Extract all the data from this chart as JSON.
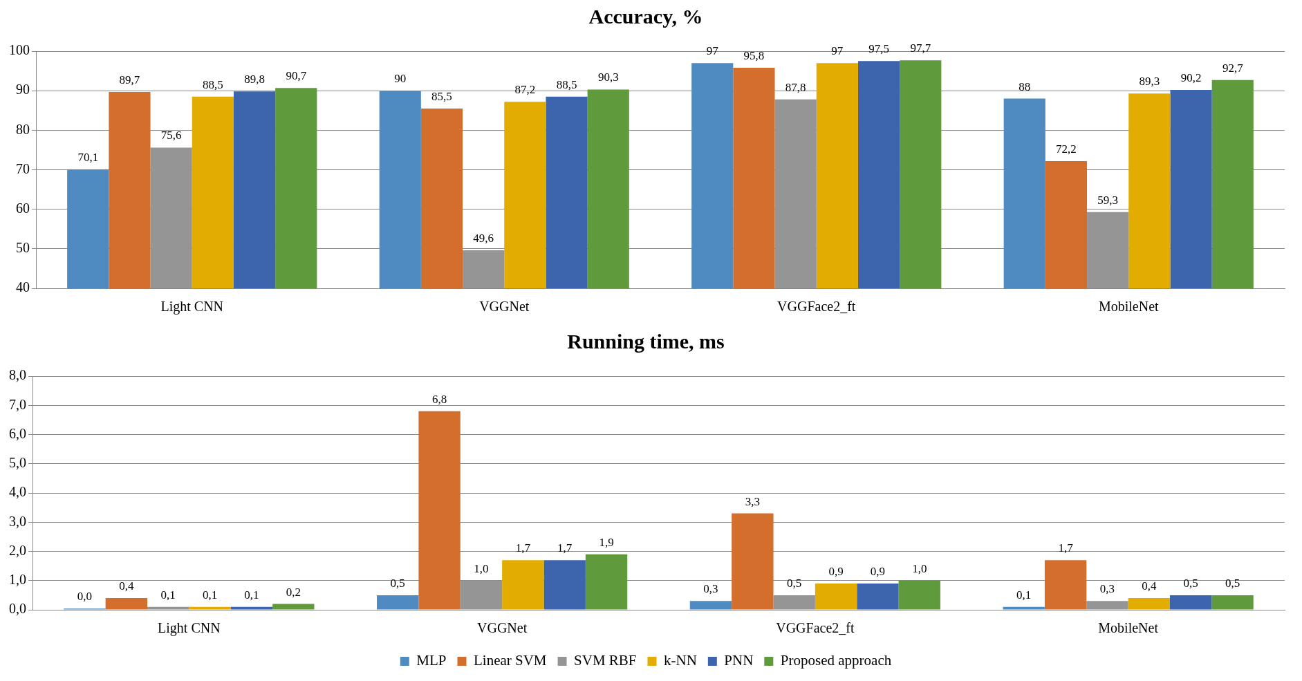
{
  "chart_data": [
    {
      "type": "bar",
      "title": "Accuracy, %",
      "categories": [
        "Light CNN",
        "VGGNet",
        "VGGFace2_ft",
        "MobileNet"
      ],
      "ylim": [
        40,
        100
      ],
      "yticks": [
        40,
        50,
        60,
        70,
        80,
        90,
        100
      ],
      "grid": "y",
      "legend": false,
      "series": [
        {
          "color": "#4f8bc0",
          "values": [
            70.1,
            90,
            97,
            88
          ],
          "value_labels": [
            "70,1",
            "90",
            "97",
            "88"
          ]
        },
        {
          "color": "#d46e2c",
          "values": [
            89.7,
            85.5,
            95.8,
            72.2
          ],
          "value_labels": [
            "89,7",
            "85,5",
            "95,8",
            "72,2"
          ]
        },
        {
          "color": "#959595",
          "values": [
            75.6,
            49.6,
            87.8,
            59.3
          ],
          "value_labels": [
            "75,6",
            "49,6",
            "87,8",
            "59,3"
          ]
        },
        {
          "color": "#e3ac00",
          "values": [
            88.5,
            87.2,
            97,
            89.3
          ],
          "value_labels": [
            "88,5",
            "87,2",
            "97",
            "89,3"
          ]
        },
        {
          "color": "#3c65ad",
          "values": [
            89.8,
            88.5,
            97.5,
            90.2
          ],
          "value_labels": [
            "89,8",
            "88,5",
            "97,5",
            "90,2"
          ]
        },
        {
          "color": "#5f9a3c",
          "values": [
            90.7,
            90.3,
            97.7,
            92.7
          ],
          "value_labels": [
            "90,7",
            "90,3",
            "97,7",
            "92,7"
          ]
        }
      ]
    },
    {
      "type": "bar",
      "title": "Running time, ms",
      "categories": [
        "Light CNN",
        "VGGNet",
        "VGGFace2_ft",
        "MobileNet"
      ],
      "ylim": [
        0,
        8
      ],
      "yticks": [
        {
          "value": 0,
          "label": "0,0"
        },
        {
          "value": 1,
          "label": "1,0"
        },
        {
          "value": 2,
          "label": "2,0"
        },
        {
          "value": 3,
          "label": "3,0"
        },
        {
          "value": 4,
          "label": "4,0"
        },
        {
          "value": 5,
          "label": "5,0"
        },
        {
          "value": 6,
          "label": "6,0"
        },
        {
          "value": 7,
          "label": "7,0"
        },
        {
          "value": 8,
          "label": "8,0"
        }
      ],
      "grid": "y",
      "legend": "bottom",
      "series": [
        {
          "name": "MLP",
          "color": "#4f8bc0",
          "values": [
            0.04,
            0.5,
            0.3,
            0.1
          ],
          "value_labels": [
            "0,0",
            "0,5",
            "0,3",
            "0,1"
          ]
        },
        {
          "name": "Linear SVM",
          "color": "#d46e2c",
          "values": [
            0.4,
            6.8,
            3.3,
            1.7
          ],
          "value_labels": [
            "0,4",
            "6,8",
            "3,3",
            "1,7"
          ]
        },
        {
          "name": "SVM RBF",
          "color": "#959595",
          "values": [
            0.1,
            1.0,
            0.5,
            0.3
          ],
          "value_labels": [
            "0,1",
            "1,0",
            "0,5",
            "0,3"
          ]
        },
        {
          "name": "k-NN",
          "color": "#e3ac00",
          "values": [
            0.1,
            1.7,
            0.9,
            0.4
          ],
          "value_labels": [
            "0,1",
            "1,7",
            "0,9",
            "0,4"
          ]
        },
        {
          "name": "PNN",
          "color": "#3c65ad",
          "values": [
            0.1,
            1.7,
            0.9,
            0.5
          ],
          "value_labels": [
            "0,1",
            "1,7",
            "0,9",
            "0,5"
          ]
        },
        {
          "name": "Proposed approach",
          "color": "#5f9a3c",
          "values": [
            0.2,
            1.9,
            1.0,
            0.5
          ],
          "value_labels": [
            "0,2",
            "1,9",
            "1,0",
            "0,5"
          ]
        }
      ]
    }
  ]
}
